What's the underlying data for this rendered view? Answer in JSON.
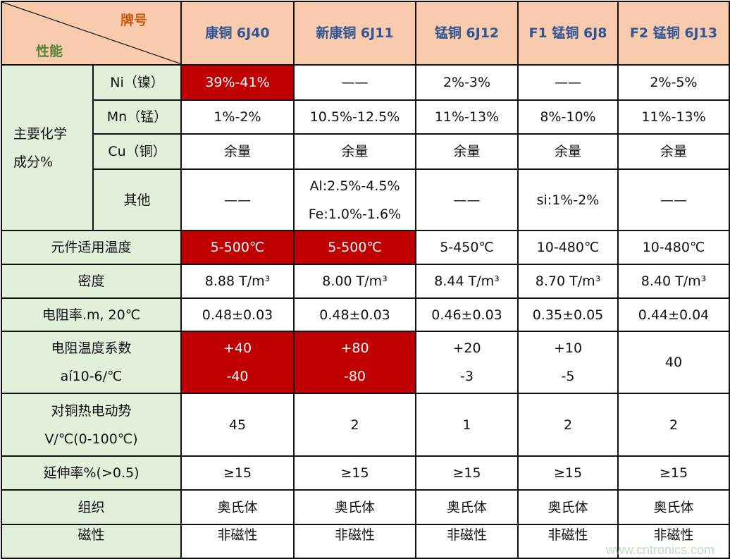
{
  "header": {
    "corner_brand": "牌号",
    "corner_property": "性能",
    "columns": [
      "康铜 6J40",
      "新康铜 6J11",
      "锰铜 6J12",
      "F1 锰铜 6J8",
      "F2 锰铜 6J13"
    ]
  },
  "group_label": [
    "主要化学",
    "成分%"
  ],
  "rows": [
    {
      "label": "Ni（镍）",
      "values": [
        "39%-41%",
        "——",
        "2%-3%",
        "——",
        "2%-5%"
      ]
    },
    {
      "label": "Mn（锰）",
      "values": [
        "1%-2%",
        "10.5%-12.5%",
        "11%-13%",
        "8%-10%",
        "11%-13%"
      ]
    },
    {
      "label": "Cu（铜）",
      "values": [
        "余量",
        "余量",
        "余量",
        "余量",
        "余量"
      ]
    },
    {
      "label": "其他",
      "values": [
        "——",
        [
          "Al:2.5%-4.5%",
          "Fe:1.0%-1.6%"
        ],
        "——",
        "si:1%-2%",
        "——"
      ]
    },
    {
      "label": "元件适用温度",
      "values": [
        "5-500℃",
        "5-500℃",
        "5-450℃",
        "10-480℃",
        "10-480℃"
      ]
    },
    {
      "label": "密度",
      "values": [
        "8.88  T/m³",
        "8.00  T/m³",
        "8.44  T/m³",
        "8.70  T/m³",
        "8.40  T/m³"
      ]
    },
    {
      "label": "电阻率.m, 20℃",
      "values": [
        "0.48±0.03",
        "0.48±0.03",
        "0.46±0.03",
        "0.35±0.05",
        "0.44±0.04"
      ]
    },
    {
      "label": [
        "电阻温度系数",
        "aí10-6/℃"
      ],
      "values": [
        [
          "+40",
          "-40"
        ],
        [
          "+80",
          "-80"
        ],
        [
          "+20",
          "-3"
        ],
        [
          "+10",
          "-5"
        ],
        "40"
      ]
    },
    {
      "label": [
        "对铜热电动势",
        "V/℃(0-100℃)"
      ],
      "values": [
        "45",
        "2",
        "1",
        "2",
        "2"
      ]
    },
    {
      "label": "延伸率%(>0.5)",
      "values": [
        "≥15",
        "≥15",
        "≥15",
        "≥15",
        "≥15"
      ]
    },
    {
      "label": "组织",
      "values": [
        "奥氏体",
        "奥氏体",
        "奥氏体",
        "奥氏体",
        "奥氏体"
      ]
    },
    {
      "label": "磁性",
      "values": [
        "非磁性",
        "非磁性",
        "非磁性",
        "非磁性",
        "非磁性"
      ]
    }
  ],
  "highlighted_cells": [
    [
      0,
      0
    ],
    [
      4,
      0
    ],
    [
      4,
      1
    ],
    [
      7,
      0
    ],
    [
      7,
      1
    ]
  ],
  "colors": {
    "header_bg": "#f8cbad",
    "header_text": "#2f5597",
    "brand_label": "#c55a11",
    "property_label": "#548235",
    "label_bg": "#e2efda",
    "highlight": "#c00000"
  },
  "watermark": "www.cntronics.com"
}
